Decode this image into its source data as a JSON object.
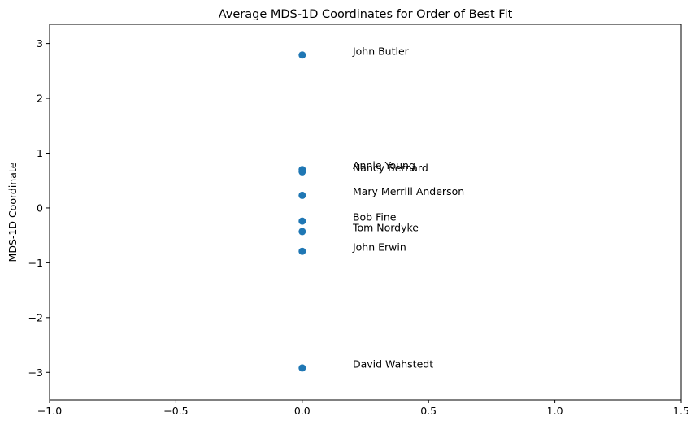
{
  "chart_data": {
    "type": "scatter",
    "title": "Average MDS-1D Coordinates for Order of Best Fit",
    "xlabel": "",
    "ylabel": "MDS-1D Coordinate",
    "xlim": [
      -1.0,
      1.5
    ],
    "ylim": [
      -3.5,
      3.35
    ],
    "xticks": [
      -1.0,
      -0.5,
      0.0,
      0.5,
      1.0,
      1.5
    ],
    "xtick_labels": [
      "−1.0",
      "−0.5",
      "0.0",
      "0.5",
      "1.0",
      "1.5"
    ],
    "yticks": [
      -3,
      -2,
      -1,
      0,
      1,
      2,
      3
    ],
    "ytick_labels": [
      "−3",
      "−2",
      "−1",
      "0",
      "1",
      "2",
      "3"
    ],
    "grid": false,
    "marker_color": "#1f77b4",
    "points": [
      {
        "label": "John Butler",
        "x": 0.0,
        "y": 2.79
      },
      {
        "label": "Annie Young",
        "x": 0.0,
        "y": 0.7
      },
      {
        "label": "Nancy Bernard",
        "x": 0.0,
        "y": 0.66
      },
      {
        "label": "Mary Merrill Anderson",
        "x": 0.0,
        "y": 0.23
      },
      {
        "label": "Bob Fine",
        "x": 0.0,
        "y": -0.24
      },
      {
        "label": "Tom Nordyke",
        "x": 0.0,
        "y": -0.43
      },
      {
        "label": "John Erwin",
        "x": 0.0,
        "y": -0.79
      },
      {
        "label": "David Wahstedt",
        "x": 0.0,
        "y": -2.92
      }
    ],
    "annotation_x": 0.2
  }
}
